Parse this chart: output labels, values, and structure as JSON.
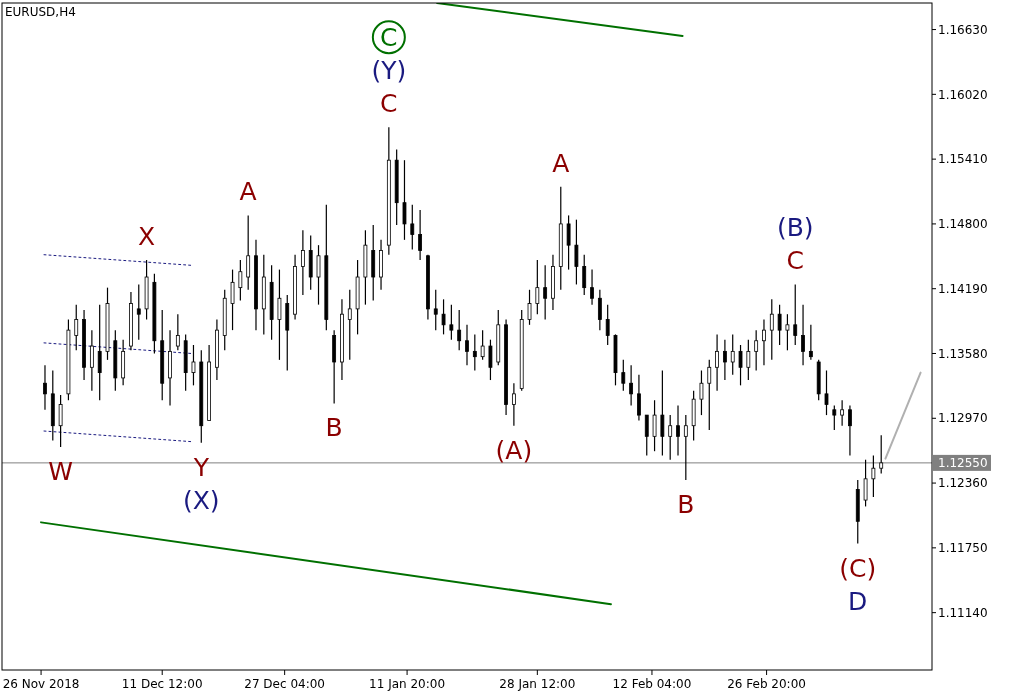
{
  "chart_data": {
    "type": "candlestick",
    "title": "EURUSD,H4",
    "x": [
      "2018-11-26T12:00",
      "2018-11-27T12:00",
      "2018-11-28T12:00",
      "2018-11-29T12:00",
      "2018-11-30T12:00",
      "2018-12-01T12:00",
      "2018-12-02T12:00",
      "2018-12-03T12:00",
      "2018-12-04T12:00",
      "2018-12-05T12:00",
      "2018-12-06T12:00",
      "2018-12-07T12:00",
      "2018-12-08T12:00",
      "2018-12-09T12:00",
      "2018-12-10T12:00",
      "2018-12-11T12:00",
      "2018-12-12T12:00",
      "2018-12-13T12:00",
      "2018-12-14T12:00",
      "2018-12-15T12:00",
      "2018-12-16T12:00",
      "2018-12-17T12:00",
      "2018-12-18T12:00",
      "2018-12-19T12:00",
      "2018-12-20T12:00",
      "2018-12-21T12:00",
      "2018-12-22T12:00",
      "2018-12-23T12:00",
      "2018-12-24T12:00",
      "2018-12-25T12:00",
      "2018-12-26T12:00",
      "2018-12-27T12:00",
      "2018-12-28T12:00",
      "2018-12-29T12:00",
      "2018-12-30T12:00",
      "2018-12-31T12:00",
      "2019-01-01T12:00",
      "2019-01-02T12:00",
      "2019-01-03T12:00",
      "2019-01-04T12:00",
      "2019-01-05T12:00",
      "2019-01-06T12:00",
      "2019-01-07T12:00",
      "2019-01-08T12:00",
      "2019-01-09T12:00",
      "2019-01-10T12:00",
      "2019-01-11T12:00",
      "2019-01-12T12:00",
      "2019-01-13T12:00",
      "2019-01-14T12:00",
      "2019-01-15T12:00",
      "2019-01-16T12:00",
      "2019-01-17T12:00",
      "2019-01-18T12:00",
      "2019-01-19T12:00",
      "2019-01-20T12:00",
      "2019-01-21T12:00",
      "2019-01-22T12:00",
      "2019-01-23T12:00",
      "2019-01-24T12:00",
      "2019-01-25T12:00",
      "2019-01-26T12:00",
      "2019-01-27T12:00",
      "2019-01-28T12:00",
      "2019-01-29T12:00",
      "2019-01-30T12:00",
      "2019-01-31T12:00",
      "2019-02-01T12:00",
      "2019-02-02T12:00",
      "2019-02-03T12:00",
      "2019-02-04T12:00",
      "2019-02-05T12:00",
      "2019-02-06T12:00",
      "2019-02-07T12:00",
      "2019-02-08T12:00",
      "2019-02-09T12:00",
      "2019-02-10T12:00",
      "2019-02-11T12:00",
      "2019-02-12T12:00",
      "2019-02-13T12:00",
      "2019-02-14T12:00",
      "2019-02-15T12:00",
      "2019-02-16T12:00",
      "2019-02-17T12:00",
      "2019-02-18T12:00",
      "2019-02-19T12:00",
      "2019-02-20T12:00",
      "2019-02-21T12:00",
      "2019-02-22T12:00",
      "2019-02-23T12:00",
      "2019-02-24T12:00",
      "2019-02-25T12:00",
      "2019-02-26T12:00",
      "2019-02-27T12:00",
      "2019-02-28T12:00",
      "2019-03-01T12:00",
      "2019-03-02T12:00",
      "2019-03-03T12:00",
      "2019-03-04T12:00",
      "2019-03-05T12:00",
      "2019-03-06T12:00",
      "2019-03-07T12:00",
      "2019-03-08T12:00",
      "2019-03-09T12:00",
      "2019-03-10T12:00",
      "2019-03-11T12:00",
      "2019-03-12T12:00",
      "2019-03-13T12:00"
    ],
    "ohlc": [
      [
        1.133,
        1.1347,
        1.1305,
        1.132
      ],
      [
        1.132,
        1.1342,
        1.1276,
        1.129
      ],
      [
        1.129,
        1.1319,
        1.127,
        1.131
      ],
      [
        1.132,
        1.139,
        1.1314,
        1.138
      ],
      [
        1.1375,
        1.1404,
        1.1361,
        1.139
      ],
      [
        1.139,
        1.1399,
        1.1333,
        1.1345
      ],
      [
        1.1345,
        1.138,
        1.1323,
        1.1365
      ],
      [
        1.136,
        1.1404,
        1.1314,
        1.134
      ],
      [
        1.136,
        1.142,
        1.1352,
        1.1405
      ],
      [
        1.137,
        1.138,
        1.1323,
        1.1335
      ],
      [
        1.1335,
        1.1371,
        1.1328,
        1.136
      ],
      [
        1.1365,
        1.1416,
        1.1361,
        1.1405
      ],
      [
        1.14,
        1.1423,
        1.1371,
        1.1395
      ],
      [
        1.14,
        1.1446,
        1.139,
        1.143
      ],
      [
        1.1425,
        1.1433,
        1.1358,
        1.137
      ],
      [
        1.137,
        1.1399,
        1.1314,
        1.133
      ],
      [
        1.1335,
        1.138,
        1.1309,
        1.136
      ],
      [
        1.1365,
        1.1395,
        1.1361,
        1.1375
      ],
      [
        1.137,
        1.1376,
        1.1323,
        1.134
      ],
      [
        1.134,
        1.1366,
        1.1328,
        1.135
      ],
      [
        1.135,
        1.1361,
        1.1274,
        1.129
      ],
      [
        1.1295,
        1.1366,
        1.1295,
        1.135
      ],
      [
        1.1345,
        1.139,
        1.1333,
        1.138
      ],
      [
        1.1375,
        1.1418,
        1.1361,
        1.141
      ],
      [
        1.1405,
        1.1437,
        1.138,
        1.1425
      ],
      [
        1.142,
        1.1446,
        1.1408,
        1.1435
      ],
      [
        1.143,
        1.1488,
        1.1418,
        1.145
      ],
      [
        1.145,
        1.1465,
        1.138,
        1.14
      ],
      [
        1.14,
        1.1451,
        1.1376,
        1.143
      ],
      [
        1.1425,
        1.1441,
        1.1371,
        1.139
      ],
      [
        1.139,
        1.1437,
        1.1352,
        1.141
      ],
      [
        1.1405,
        1.1413,
        1.1342,
        1.138
      ],
      [
        1.1395,
        1.1451,
        1.139,
        1.144
      ],
      [
        1.144,
        1.1474,
        1.1413,
        1.1455
      ],
      [
        1.1455,
        1.1469,
        1.1418,
        1.143
      ],
      [
        1.143,
        1.146,
        1.1404,
        1.145
      ],
      [
        1.145,
        1.1498,
        1.138,
        1.139
      ],
      [
        1.1375,
        1.138,
        1.1311,
        1.135
      ],
      [
        1.135,
        1.1409,
        1.1333,
        1.1395
      ],
      [
        1.139,
        1.1418,
        1.1352,
        1.14
      ],
      [
        1.14,
        1.1446,
        1.1376,
        1.143
      ],
      [
        1.143,
        1.1474,
        1.1404,
        1.146
      ],
      [
        1.1455,
        1.1479,
        1.1408,
        1.143
      ],
      [
        1.143,
        1.1465,
        1.1418,
        1.1455
      ],
      [
        1.146,
        1.1571,
        1.1451,
        1.154
      ],
      [
        1.154,
        1.155,
        1.1479,
        1.15
      ],
      [
        1.15,
        1.154,
        1.1465,
        1.148
      ],
      [
        1.148,
        1.1498,
        1.1456,
        1.147
      ],
      [
        1.147,
        1.1493,
        1.1446,
        1.1455
      ],
      [
        1.145,
        1.1451,
        1.139,
        1.14
      ],
      [
        1.14,
        1.1418,
        1.138,
        1.1395
      ],
      [
        1.1395,
        1.1409,
        1.1376,
        1.1385
      ],
      [
        1.1385,
        1.1404,
        1.1371,
        1.138
      ],
      [
        1.138,
        1.1399,
        1.1361,
        1.137
      ],
      [
        1.137,
        1.1385,
        1.1347,
        1.136
      ],
      [
        1.136,
        1.1376,
        1.1342,
        1.1355
      ],
      [
        1.1355,
        1.138,
        1.1352,
        1.1365
      ],
      [
        1.1365,
        1.1371,
        1.1333,
        1.1345
      ],
      [
        1.135,
        1.1399,
        1.1347,
        1.1385
      ],
      [
        1.1385,
        1.139,
        1.13,
        1.131
      ],
      [
        1.131,
        1.133,
        1.129,
        1.132
      ],
      [
        1.1325,
        1.1399,
        1.1323,
        1.139
      ],
      [
        1.139,
        1.1418,
        1.1385,
        1.1405
      ],
      [
        1.1405,
        1.1446,
        1.1395,
        1.142
      ],
      [
        1.142,
        1.1441,
        1.139,
        1.141
      ],
      [
        1.141,
        1.1451,
        1.1399,
        1.144
      ],
      [
        1.144,
        1.1515,
        1.1418,
        1.148
      ],
      [
        1.148,
        1.1488,
        1.1437,
        1.146
      ],
      [
        1.146,
        1.1484,
        1.1423,
        1.144
      ],
      [
        1.144,
        1.1451,
        1.1413,
        1.142
      ],
      [
        1.142,
        1.1437,
        1.1404,
        1.141
      ],
      [
        1.141,
        1.1418,
        1.138,
        1.139
      ],
      [
        1.139,
        1.1404,
        1.1366,
        1.1375
      ],
      [
        1.1375,
        1.1376,
        1.1328,
        1.134
      ],
      [
        1.134,
        1.1352,
        1.1323,
        1.133
      ],
      [
        1.133,
        1.1347,
        1.1309,
        1.132
      ],
      [
        1.132,
        1.1338,
        1.1295,
        1.13
      ],
      [
        1.13,
        1.13,
        1.1262,
        1.128
      ],
      [
        1.128,
        1.1314,
        1.1266,
        1.13
      ],
      [
        1.13,
        1.1342,
        1.1262,
        1.128
      ],
      [
        1.128,
        1.13,
        1.1258,
        1.129
      ],
      [
        1.129,
        1.1309,
        1.1262,
        1.128
      ],
      [
        1.128,
        1.13,
        1.1239,
        1.129
      ],
      [
        1.129,
        1.1323,
        1.1276,
        1.1315
      ],
      [
        1.1315,
        1.1342,
        1.13,
        1.133
      ],
      [
        1.133,
        1.1352,
        1.1286,
        1.1345
      ],
      [
        1.1345,
        1.1376,
        1.1323,
        1.136
      ],
      [
        1.136,
        1.1371,
        1.1333,
        1.135
      ],
      [
        1.135,
        1.1376,
        1.1338,
        1.136
      ],
      [
        1.136,
        1.1366,
        1.1328,
        1.1345
      ],
      [
        1.1345,
        1.1371,
        1.1333,
        1.136
      ],
      [
        1.136,
        1.138,
        1.1342,
        1.137
      ],
      [
        1.137,
        1.139,
        1.1347,
        1.138
      ],
      [
        1.138,
        1.1409,
        1.1352,
        1.1395
      ],
      [
        1.1395,
        1.1404,
        1.1366,
        1.138
      ],
      [
        1.138,
        1.1395,
        1.1361,
        1.1385
      ],
      [
        1.1385,
        1.1423,
        1.1366,
        1.1375
      ],
      [
        1.1375,
        1.1404,
        1.1347,
        1.136
      ],
      [
        1.136,
        1.1385,
        1.1352,
        1.1355
      ],
      [
        1.135,
        1.1352,
        1.1314,
        1.132
      ],
      [
        1.132,
        1.1342,
        1.13,
        1.131
      ],
      [
        1.1305,
        1.1309,
        1.1286,
        1.13
      ],
      [
        1.13,
        1.1314,
        1.129,
        1.1305
      ],
      [
        1.1305,
        1.1309,
        1.1262,
        1.129
      ],
      [
        1.123,
        1.1239,
        1.1179,
        1.12
      ],
      [
        1.122,
        1.1258,
        1.1214,
        1.124
      ],
      [
        1.124,
        1.1262,
        1.1223,
        1.125
      ],
      [
        1.125,
        1.1281,
        1.1245,
        1.1255
      ]
    ],
    "series": [
      {
        "type": "line",
        "color": "#007000",
        "line_style": "solid",
        "x": [
          "2019-01-15T16:00",
          "2019-02-16T02:00"
        ],
        "values": [
          1.1688,
          1.1657
        ]
      },
      {
        "type": "line",
        "color": "#007000",
        "line_style": "solid",
        "x": [
          "2018-11-26T00:00",
          "2019-02-06T22:00"
        ],
        "values": [
          1.1199,
          1.1122
        ]
      },
      {
        "type": "line",
        "color": "#1a1a80",
        "line_style": "dotted",
        "x": [
          "2018-11-26T09:00",
          "2018-12-15T06:00"
        ],
        "values": [
          1.1451,
          1.1441
        ]
      },
      {
        "type": "line",
        "color": "#1a1a80",
        "line_style": "dotted",
        "x": [
          "2018-11-26T09:00",
          "2018-12-15T06:00"
        ],
        "values": [
          1.1368,
          1.1358
        ]
      },
      {
        "type": "line",
        "color": "#1a1a80",
        "line_style": "dotted",
        "x": [
          "2018-11-26T09:00",
          "2018-12-15T06:00"
        ],
        "values": [
          1.1285,
          1.1275
        ]
      },
      {
        "type": "line",
        "color": "#b0b0b0",
        "line_style": "solid",
        "x": [
          "2019-03-14T01:00",
          "2019-03-18T13:00"
        ],
        "values": [
          1.1259,
          1.134
        ]
      }
    ],
    "ref_lines": [
      {
        "axis": "y",
        "value": 1.1255,
        "label": "1.12550",
        "color": "#808080"
      }
    ],
    "annotations": [
      {
        "text": "W",
        "x": "2018-11-28T12:00",
        "y": 1.127
      },
      {
        "text": "X",
        "x": "2018-12-09T12:00",
        "y": 1.1446
      },
      {
        "text": "Y",
        "x": "2018-12-16T12:00",
        "y": 1.1274
      },
      {
        "text": "(X)",
        "x": "2018-12-16T12:00",
        "y": 1.1274
      },
      {
        "text": "A",
        "x": "2018-12-22T12:00",
        "y": 1.1488
      },
      {
        "text": "B",
        "x": "2019-01-02T12:00",
        "y": 1.1311
      },
      {
        "text": "C",
        "x": "2019-01-09T12:00",
        "y": 1.1571
      },
      {
        "text": "(Y)",
        "x": "2019-01-09T12:00",
        "y": 1.1571
      },
      {
        "text": "C",
        "x": "2019-01-09T12:00",
        "y": 1.1571
      },
      {
        "text": "(A)",
        "x": "2019-01-25T12:00",
        "y": 1.129
      },
      {
        "text": "A",
        "x": "2019-01-31T12:00",
        "y": 1.1515
      },
      {
        "text": "B",
        "x": "2019-02-16T12:00",
        "y": 1.1239
      },
      {
        "text": "C",
        "x": "2019-03-02T12:00",
        "y": 1.1423
      },
      {
        "text": "(B)",
        "x": "2019-03-02T12:00",
        "y": 1.1423
      },
      {
        "text": "(C)",
        "x": "2019-03-10T12:00",
        "y": 1.1179
      },
      {
        "text": "D",
        "x": "2019-03-10T12:00",
        "y": 1.1179
      }
    ],
    "xlim": [
      "2018-11-21T00:00",
      "2019-03-20T00:00"
    ],
    "xticks": [
      {
        "value": "2018-11-26T00:00",
        "label": "26 Nov 2018"
      },
      {
        "value": "2018-12-11T12:00",
        "label": "11 Dec 12:00"
      },
      {
        "value": "2018-12-27T04:00",
        "label": "27 Dec 04:00"
      },
      {
        "value": "2019-01-11T20:00",
        "label": "11 Jan 20:00"
      },
      {
        "value": "2019-01-28T12:00",
        "label": "28 Jan 12:00"
      },
      {
        "value": "2019-02-12T04:00",
        "label": "12 Feb 04:00"
      },
      {
        "value": "2019-02-26T20:00",
        "label": "26 Feb 20:00"
      }
    ],
    "ylim": [
      1.106,
      1.1688
    ],
    "yticks": [
      {
        "value": 1.1114,
        "label": "1.11140"
      },
      {
        "value": 1.1175,
        "label": "1.11750"
      },
      {
        "value": 1.1236,
        "label": "1.12360"
      },
      {
        "value": 1.1297,
        "label": "1.12970"
      },
      {
        "value": 1.1358,
        "label": "1.13580"
      },
      {
        "value": 1.1419,
        "label": "1.14190"
      },
      {
        "value": 1.148,
        "label": "1.14800"
      },
      {
        "value": 1.1541,
        "label": "1.15410"
      },
      {
        "value": 1.1602,
        "label": "1.16020"
      },
      {
        "value": 1.1663,
        "label": "1.16630"
      }
    ],
    "grid": false
  }
}
